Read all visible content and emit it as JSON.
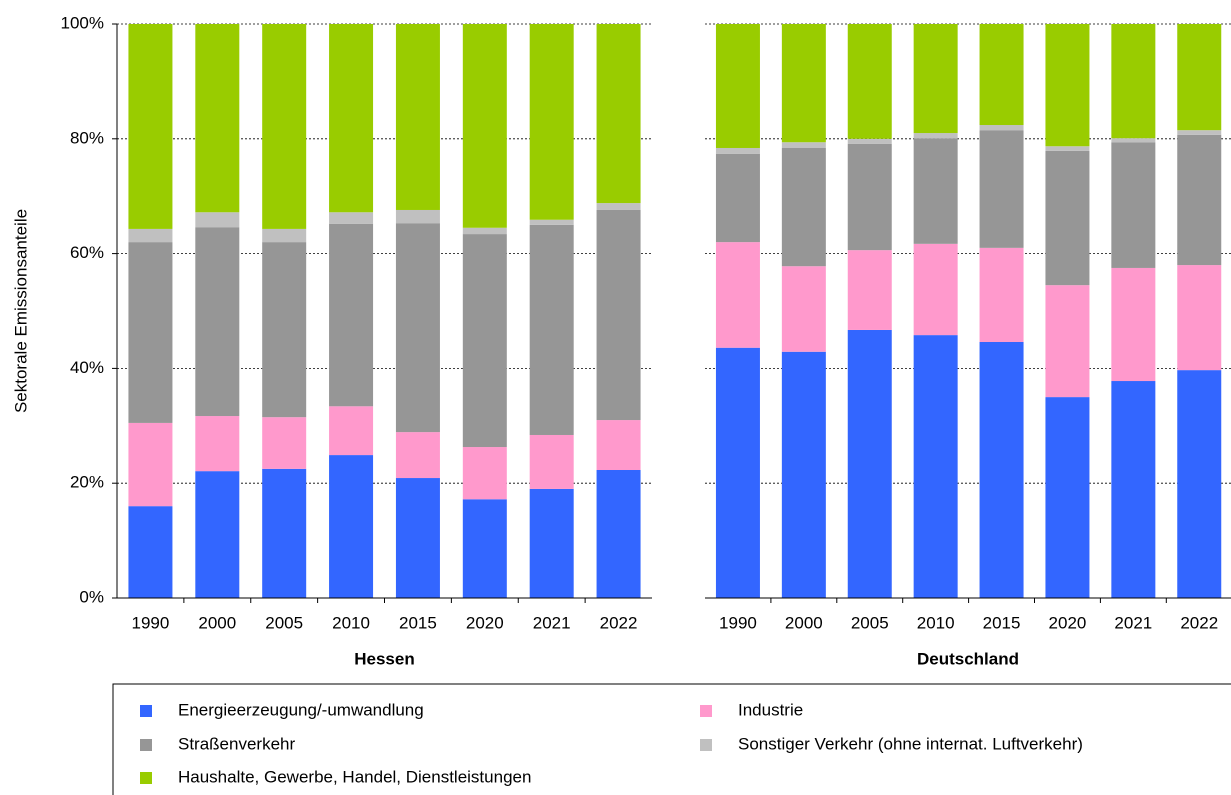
{
  "chart_data": [
    {
      "type": "stacked-bar",
      "xlabel": "Hessen",
      "ylabel": "Sektorale Emissionsanteile",
      "categories": [
        "1990",
        "2000",
        "2005",
        "2010",
        "2015",
        "2020",
        "2021",
        "2022"
      ],
      "series": [
        {
          "name": "Energieerzeugung/-umwandlung",
          "color": "#3366ff",
          "values": [
            16.0,
            22.1,
            22.5,
            24.9,
            20.9,
            17.2,
            19.0,
            22.3
          ]
        },
        {
          "name": "Industrie",
          "color": "#ff99cc",
          "values": [
            14.5,
            9.6,
            9.0,
            8.5,
            8.0,
            9.1,
            9.4,
            8.7
          ]
        },
        {
          "name": "Straßenverkehr",
          "color": "#969696",
          "values": [
            31.5,
            32.9,
            30.5,
            31.8,
            36.4,
            37.1,
            36.6,
            36.6
          ]
        },
        {
          "name": "Sonstiger Verkehr (ohne internat. Luftverkehr)",
          "color": "#c0c0c0",
          "values": [
            2.3,
            2.6,
            2.3,
            2.0,
            2.3,
            1.1,
            0.9,
            1.2
          ]
        },
        {
          "name": "Haushalte, Gewerbe, Handel, Dienstleistungen",
          "color": "#99cc00",
          "values": [
            35.7,
            32.8,
            35.7,
            32.8,
            32.4,
            35.5,
            34.1,
            31.2
          ]
        }
      ],
      "ylim": [
        0,
        100
      ],
      "yticks": [
        {
          "value": 0,
          "label": "0%"
        },
        {
          "value": 20,
          "label": "20%"
        },
        {
          "value": 40,
          "label": "40%"
        },
        {
          "value": 60,
          "label": "60%"
        },
        {
          "value": 80,
          "label": "80%"
        },
        {
          "value": 100,
          "label": "100%"
        }
      ],
      "grid": true
    },
    {
      "type": "stacked-bar",
      "xlabel": "Deutschland",
      "categories": [
        "1990",
        "2000",
        "2005",
        "2010",
        "2015",
        "2020",
        "2021",
        "2022"
      ],
      "series": [
        {
          "name": "Energieerzeugung/-umwandlung",
          "color": "#3366ff",
          "values": [
            43.6,
            42.9,
            46.7,
            45.8,
            44.6,
            35.0,
            37.8,
            39.7
          ]
        },
        {
          "name": "Industrie",
          "color": "#ff99cc",
          "values": [
            18.4,
            14.9,
            13.9,
            15.9,
            16.4,
            19.5,
            19.7,
            18.3
          ]
        },
        {
          "name": "Straßenverkehr",
          "color": "#969696",
          "values": [
            15.4,
            20.6,
            18.5,
            18.4,
            20.5,
            23.4,
            21.9,
            22.7
          ]
        },
        {
          "name": "Sonstiger Verkehr (ohne internat. Luftverkehr)",
          "color": "#c0c0c0",
          "values": [
            1.0,
            1.0,
            0.9,
            0.9,
            0.9,
            0.8,
            0.7,
            0.8
          ]
        },
        {
          "name": "Haushalte, Gewerbe, Handel, Dienstleistungen",
          "color": "#99cc00",
          "values": [
            21.6,
            20.6,
            20.0,
            19.0,
            17.6,
            21.3,
            19.9,
            18.5
          ]
        }
      ],
      "ylim": [
        0,
        100
      ],
      "yticks": [
        0,
        20,
        40,
        60,
        80,
        100
      ],
      "grid": true
    }
  ]
}
